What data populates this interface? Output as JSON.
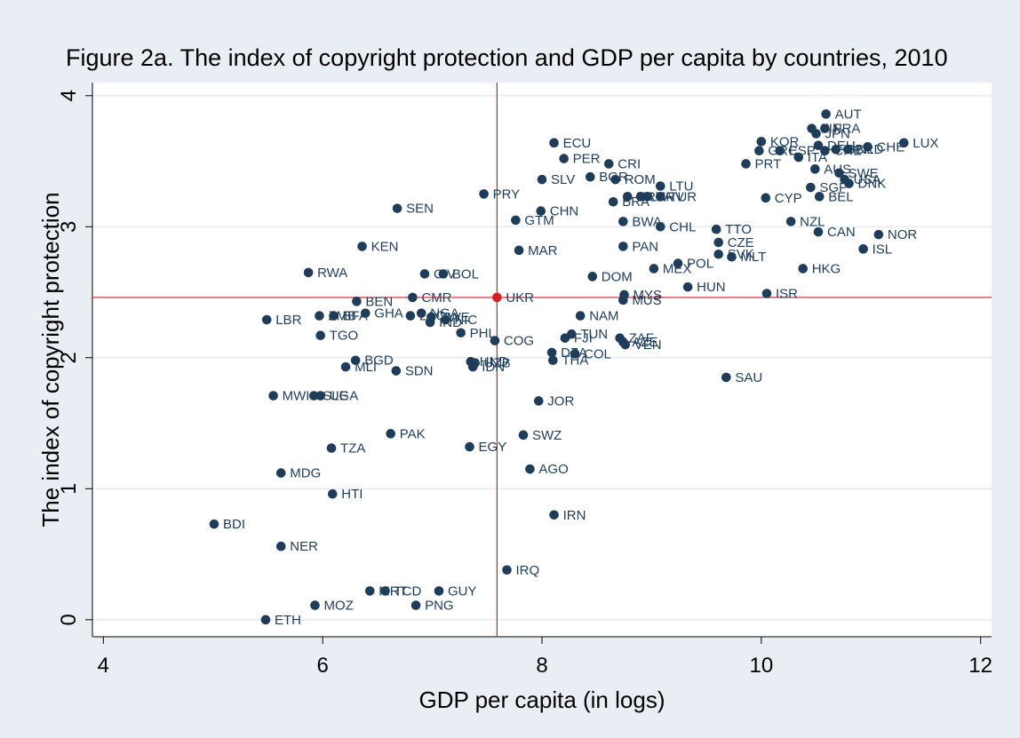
{
  "chart_data": {
    "type": "scatter",
    "title": "Figure 2a. The index of copyright protection and GDP per capita by countries, 2010",
    "xlabel": "GDP per capita (in logs)",
    "ylabel": "The index of copyright protection",
    "xlim": [
      3.9,
      12.1
    ],
    "ylim": [
      -0.13,
      4.1
    ],
    "xticks": [
      "4",
      "6",
      "8",
      "10",
      "12"
    ],
    "yticks": [
      "0",
      "1",
      "2",
      "3",
      "4"
    ],
    "grid": "horizontal",
    "legend": "none",
    "colors": {
      "background": "#e8eef3",
      "plot_area": "#ffffff",
      "grid": "#e8eef3",
      "point": "#1f3d59",
      "label": "#1f3d59",
      "reference_line": "#d42020",
      "highlight_point": "#d42020"
    },
    "reference_lines": {
      "x": 7.59,
      "y": 2.46
    },
    "highlight": "UKR",
    "points": [
      {
        "label": "AUT",
        "x": 10.59,
        "y": 3.86
      },
      {
        "label": "FIN",
        "x": 10.46,
        "y": 3.75
      },
      {
        "label": "FRA",
        "x": 10.58,
        "y": 3.75
      },
      {
        "label": "JPN",
        "x": 10.5,
        "y": 3.71
      },
      {
        "label": "KOR",
        "x": 10.0,
        "y": 3.65
      },
      {
        "label": "LUX",
        "x": 11.3,
        "y": 3.64
      },
      {
        "label": "CHE",
        "x": 10.97,
        "y": 3.61
      },
      {
        "label": "DEU",
        "x": 10.52,
        "y": 3.62
      },
      {
        "label": "GBR",
        "x": 10.68,
        "y": 3.59
      },
      {
        "label": "NLD",
        "x": 10.79,
        "y": 3.59
      },
      {
        "label": "GRC",
        "x": 9.98,
        "y": 3.58
      },
      {
        "label": "ESP",
        "x": 10.17,
        "y": 3.58
      },
      {
        "label": "CHE",
        "x": 10.58,
        "y": 3.58
      },
      {
        "label": "ITA",
        "x": 10.34,
        "y": 3.53
      },
      {
        "label": "PRT",
        "x": 9.86,
        "y": 3.48
      },
      {
        "label": "AUS",
        "x": 10.49,
        "y": 3.44
      },
      {
        "label": "SWE",
        "x": 10.71,
        "y": 3.41
      },
      {
        "label": "USA",
        "x": 10.76,
        "y": 3.36
      },
      {
        "label": "DNK",
        "x": 10.8,
        "y": 3.33
      },
      {
        "label": "SGP",
        "x": 10.45,
        "y": 3.3
      },
      {
        "label": "BEL",
        "x": 10.53,
        "y": 3.23
      },
      {
        "label": "CYP",
        "x": 10.04,
        "y": 3.22
      },
      {
        "label": "ECU",
        "x": 8.11,
        "y": 3.64
      },
      {
        "label": "PER",
        "x": 8.2,
        "y": 3.52
      },
      {
        "label": "CRI",
        "x": 8.61,
        "y": 3.48
      },
      {
        "label": "SLV",
        "x": 8.0,
        "y": 3.36
      },
      {
        "label": "BGR",
        "x": 8.44,
        "y": 3.38
      },
      {
        "label": "ROM",
        "x": 8.67,
        "y": 3.36
      },
      {
        "label": "LTU",
        "x": 9.08,
        "y": 3.31
      },
      {
        "label": "URY",
        "x": 8.78,
        "y": 3.23
      },
      {
        "label": "LVA",
        "x": 8.9,
        "y": 3.23
      },
      {
        "label": "HRV",
        "x": 8.96,
        "y": 3.23
      },
      {
        "label": "TUR",
        "x": 9.08,
        "y": 3.23
      },
      {
        "label": "BRA",
        "x": 8.65,
        "y": 3.19
      },
      {
        "label": "PRY",
        "x": 7.47,
        "y": 3.25
      },
      {
        "label": "SEN",
        "x": 6.68,
        "y": 3.14
      },
      {
        "label": "CHN",
        "x": 7.99,
        "y": 3.12
      },
      {
        "label": "GTM",
        "x": 7.76,
        "y": 3.05
      },
      {
        "label": "BWA",
        "x": 8.74,
        "y": 3.04
      },
      {
        "label": "CHL",
        "x": 9.08,
        "y": 3.0
      },
      {
        "label": "NZL",
        "x": 10.27,
        "y": 3.04
      },
      {
        "label": "TTO",
        "x": 9.59,
        "y": 2.98
      },
      {
        "label": "CAN",
        "x": 10.52,
        "y": 2.96
      },
      {
        "label": "NOR",
        "x": 11.07,
        "y": 2.94
      },
      {
        "label": "CZE",
        "x": 9.61,
        "y": 2.88
      },
      {
        "label": "ISL",
        "x": 10.93,
        "y": 2.83
      },
      {
        "label": "KEN",
        "x": 6.36,
        "y": 2.85
      },
      {
        "label": "PAN",
        "x": 8.74,
        "y": 2.85
      },
      {
        "label": "MAR",
        "x": 7.79,
        "y": 2.82
      },
      {
        "label": "SVK",
        "x": 9.61,
        "y": 2.79
      },
      {
        "label": "MLT",
        "x": 9.73,
        "y": 2.77
      },
      {
        "label": "POL",
        "x": 9.24,
        "y": 2.72
      },
      {
        "label": "HKG",
        "x": 10.38,
        "y": 2.68
      },
      {
        "label": "MEX",
        "x": 9.02,
        "y": 2.68
      },
      {
        "label": "RWA",
        "x": 5.87,
        "y": 2.65
      },
      {
        "label": "CIV",
        "x": 6.93,
        "y": 2.64
      },
      {
        "label": "BOL",
        "x": 7.1,
        "y": 2.64
      },
      {
        "label": "DOM",
        "x": 8.46,
        "y": 2.62
      },
      {
        "label": "HUN",
        "x": 9.33,
        "y": 2.54
      },
      {
        "label": "ISR",
        "x": 10.05,
        "y": 2.49
      },
      {
        "label": "MYS",
        "x": 8.75,
        "y": 2.48
      },
      {
        "label": "MUS",
        "x": 8.74,
        "y": 2.44
      },
      {
        "label": "BEN",
        "x": 6.31,
        "y": 2.43
      },
      {
        "label": "CMR",
        "x": 6.82,
        "y": 2.46
      },
      {
        "label": "UKR",
        "x": 7.59,
        "y": 2.46
      },
      {
        "label": "LBR",
        "x": 5.49,
        "y": 2.29
      },
      {
        "label": "ZMB",
        "x": 5.97,
        "y": 2.32
      },
      {
        "label": "BFA",
        "x": 6.1,
        "y": 2.32
      },
      {
        "label": "GHA",
        "x": 6.39,
        "y": 2.34
      },
      {
        "label": "LAO",
        "x": 6.8,
        "y": 2.32
      },
      {
        "label": "NGA",
        "x": 6.9,
        "y": 2.34
      },
      {
        "label": "ZWE",
        "x": 6.99,
        "y": 2.31
      },
      {
        "label": "IND",
        "x": 6.98,
        "y": 2.27
      },
      {
        "label": "NIC",
        "x": 7.12,
        "y": 2.29
      },
      {
        "label": "NAM",
        "x": 8.35,
        "y": 2.32
      },
      {
        "label": "PHL",
        "x": 7.26,
        "y": 2.19
      },
      {
        "label": "TGO",
        "x": 5.98,
        "y": 2.17
      },
      {
        "label": "COG",
        "x": 7.57,
        "y": 2.13
      },
      {
        "label": "TUN",
        "x": 8.27,
        "y": 2.18
      },
      {
        "label": "FJI",
        "x": 8.21,
        "y": 2.15
      },
      {
        "label": "ZAF",
        "x": 8.71,
        "y": 2.15
      },
      {
        "label": "AZE",
        "x": 8.74,
        "y": 2.12
      },
      {
        "label": "VEN",
        "x": 8.76,
        "y": 2.1
      },
      {
        "label": "DZA",
        "x": 8.09,
        "y": 2.04
      },
      {
        "label": "COL",
        "x": 8.3,
        "y": 2.03
      },
      {
        "label": "THA",
        "x": 8.1,
        "y": 1.98
      },
      {
        "label": "BGD",
        "x": 6.3,
        "y": 1.98
      },
      {
        "label": "MLI",
        "x": 6.21,
        "y": 1.93
      },
      {
        "label": "SDN",
        "x": 6.67,
        "y": 1.9
      },
      {
        "label": "HND",
        "x": 7.35,
        "y": 1.97
      },
      {
        "label": "UZB",
        "x": 7.39,
        "y": 1.96
      },
      {
        "label": "IDN",
        "x": 7.37,
        "y": 1.93
      },
      {
        "label": "SAU",
        "x": 9.68,
        "y": 1.85
      },
      {
        "label": "MWI",
        "x": 5.55,
        "y": 1.71
      },
      {
        "label": "SLE",
        "x": 5.92,
        "y": 1.71
      },
      {
        "label": "UGA",
        "x": 5.98,
        "y": 1.71
      },
      {
        "label": "JOR",
        "x": 7.97,
        "y": 1.67
      },
      {
        "label": "PAK",
        "x": 6.62,
        "y": 1.42
      },
      {
        "label": "SWZ",
        "x": 7.83,
        "y": 1.41
      },
      {
        "label": "TZA",
        "x": 6.08,
        "y": 1.31
      },
      {
        "label": "EGY",
        "x": 7.34,
        "y": 1.32
      },
      {
        "label": "AGO",
        "x": 7.89,
        "y": 1.15
      },
      {
        "label": "MDG",
        "x": 5.62,
        "y": 1.12
      },
      {
        "label": "HTI",
        "x": 6.09,
        "y": 0.96
      },
      {
        "label": "IRN",
        "x": 8.11,
        "y": 0.8
      },
      {
        "label": "BDI",
        "x": 5.01,
        "y": 0.73
      },
      {
        "label": "NER",
        "x": 5.62,
        "y": 0.56
      },
      {
        "label": "IRQ",
        "x": 7.68,
        "y": 0.38
      },
      {
        "label": "MRT",
        "x": 6.43,
        "y": 0.22
      },
      {
        "label": "TCD",
        "x": 6.57,
        "y": 0.22
      },
      {
        "label": "GUY",
        "x": 7.06,
        "y": 0.22
      },
      {
        "label": "MOZ",
        "x": 5.93,
        "y": 0.11
      },
      {
        "label": "PNG",
        "x": 6.85,
        "y": 0.11
      },
      {
        "label": "ETH",
        "x": 5.48,
        "y": 0.0
      }
    ]
  }
}
